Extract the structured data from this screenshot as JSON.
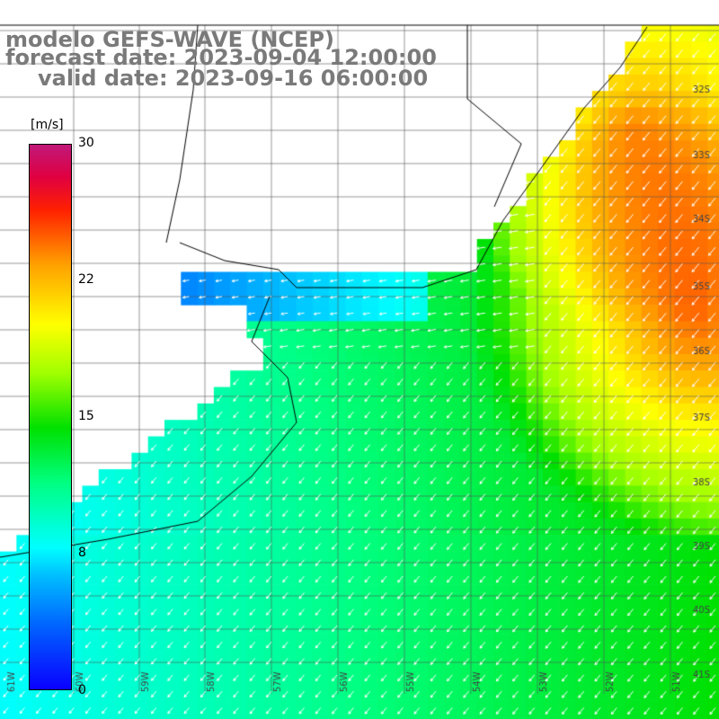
{
  "title": {
    "line1": "modelo GEFS-WAVE (NCEP)",
    "line2": "forecast date: 2023-09-04 12:00:00",
    "line3": "valid date: 2023-09-16 06:00:00"
  },
  "colorbar": {
    "unit": "[m/s]",
    "ticks": [
      "30",
      "22",
      "15",
      "8",
      "0"
    ],
    "colors": [
      "#0a00ff",
      "#00c0ff",
      "#00ffff",
      "#00e000",
      "#ffff00",
      "#ffa000",
      "#ff2000",
      "#c0187a"
    ]
  },
  "lat_labels": [
    "32S",
    "33S",
    "34S",
    "35S",
    "36S",
    "37S",
    "38S",
    "39S",
    "40S",
    "41S"
  ],
  "lon_labels": [
    "61W",
    "60W",
    "59W",
    "58W",
    "57W",
    "56W",
    "55W",
    "54W",
    "53W",
    "52W",
    "51W"
  ],
  "field": {
    "variable": "wind speed",
    "unit": "m/s",
    "range": [
      0,
      30
    ]
  }
}
